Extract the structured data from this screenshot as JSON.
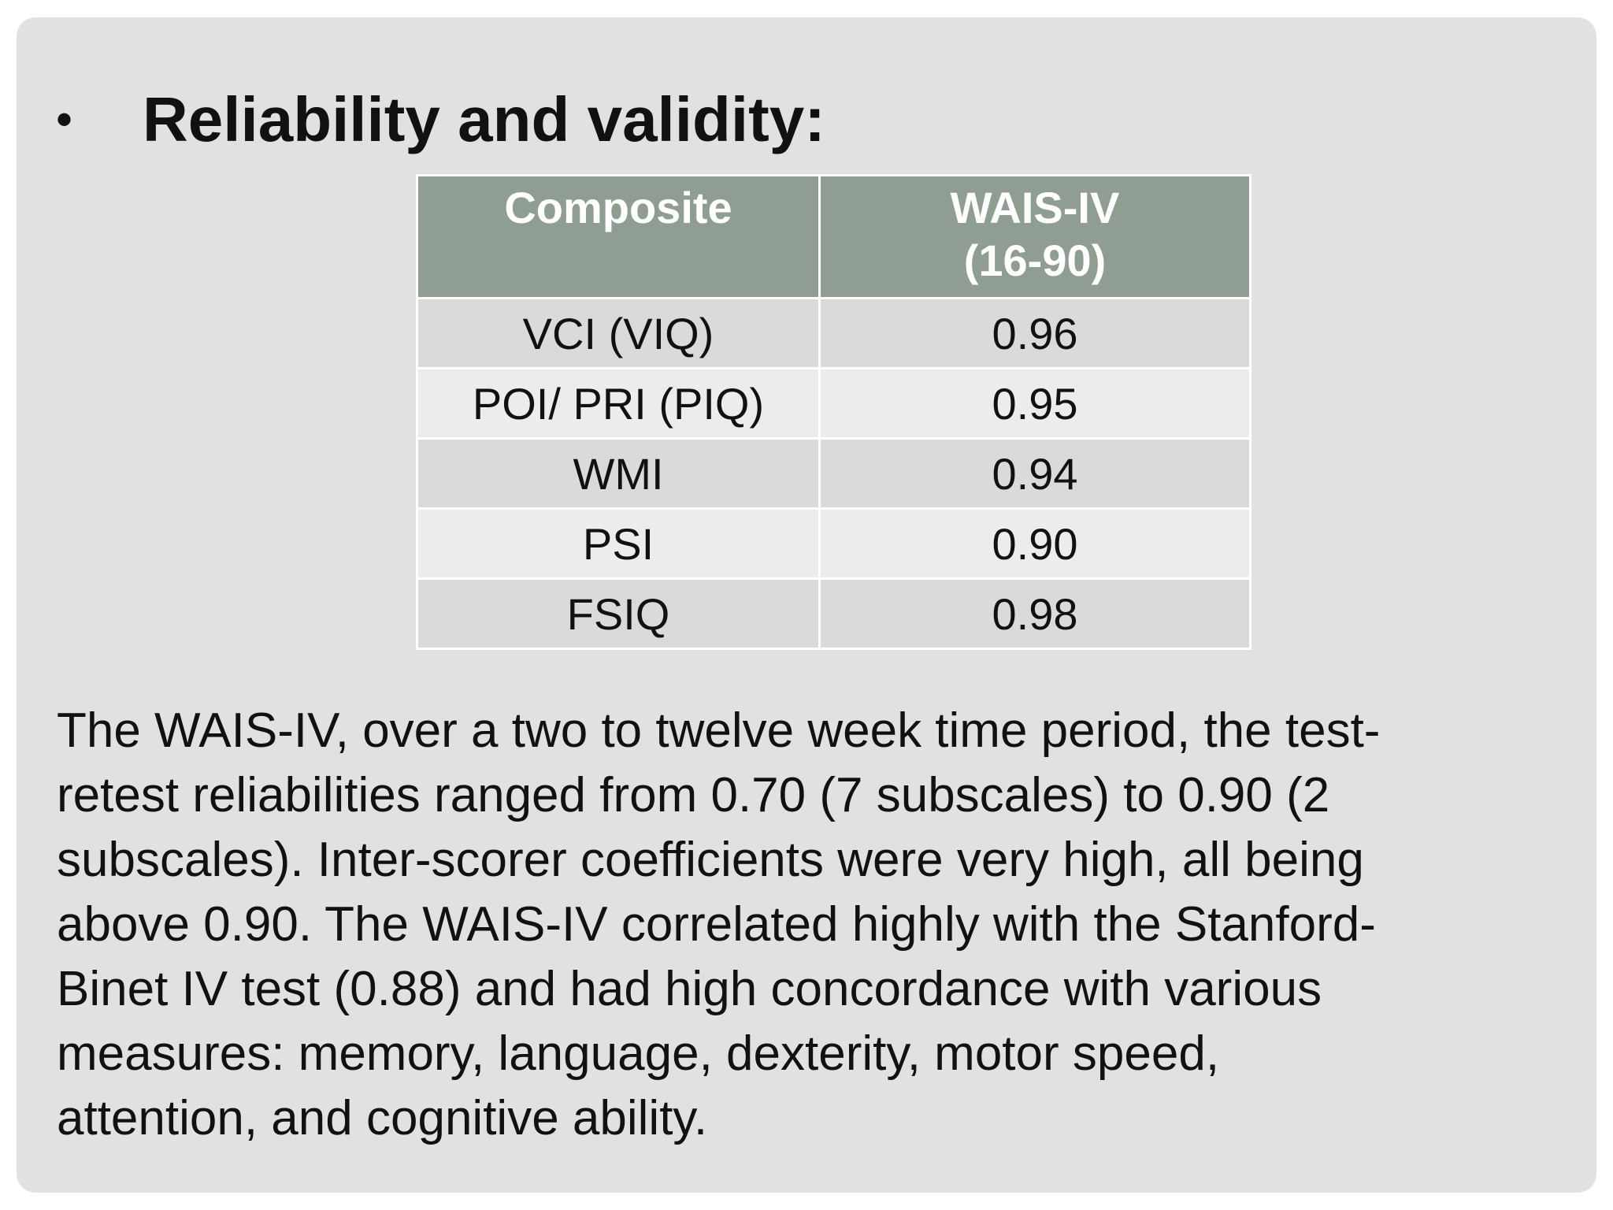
{
  "slide": {
    "bullet": "•",
    "title": "Reliability and validity:",
    "table": {
      "headers": [
        {
          "line1": "Composite",
          "line2": ""
        },
        {
          "line1": "WAIS-IV",
          "line2": "(16-90)"
        }
      ],
      "rows": [
        {
          "composite": "VCI (VIQ)",
          "value": "0.96"
        },
        {
          "composite": "POI/ PRI (PIQ)",
          "value": "0.95"
        },
        {
          "composite": "WMI",
          "value": "0.94"
        },
        {
          "composite": "PSI",
          "value": "0.90"
        },
        {
          "composite": "FSIQ",
          "value": "0.98"
        }
      ]
    },
    "paragraph_lines": [
      "The WAIS-IV, over a two to twelve week time period, the test-",
      "retest reliabilities ranged from 0.70 (7 subscales) to 0.90 (2",
      "subscales). Inter-scorer coefficients were very high, all being",
      "above 0.90. The WAIS-IV correlated highly with the Stanford-",
      "Binet IV test (0.88) and had high concordance with various",
      "measures: memory, language, dexterity, motor speed,",
      "attention, and cognitive ability."
    ]
  },
  "colors": {
    "slide_background": "#e1e1e1",
    "header_background": "#909d93",
    "row_band_dark": "#d9dbd9",
    "row_band_light": "#ececec"
  }
}
